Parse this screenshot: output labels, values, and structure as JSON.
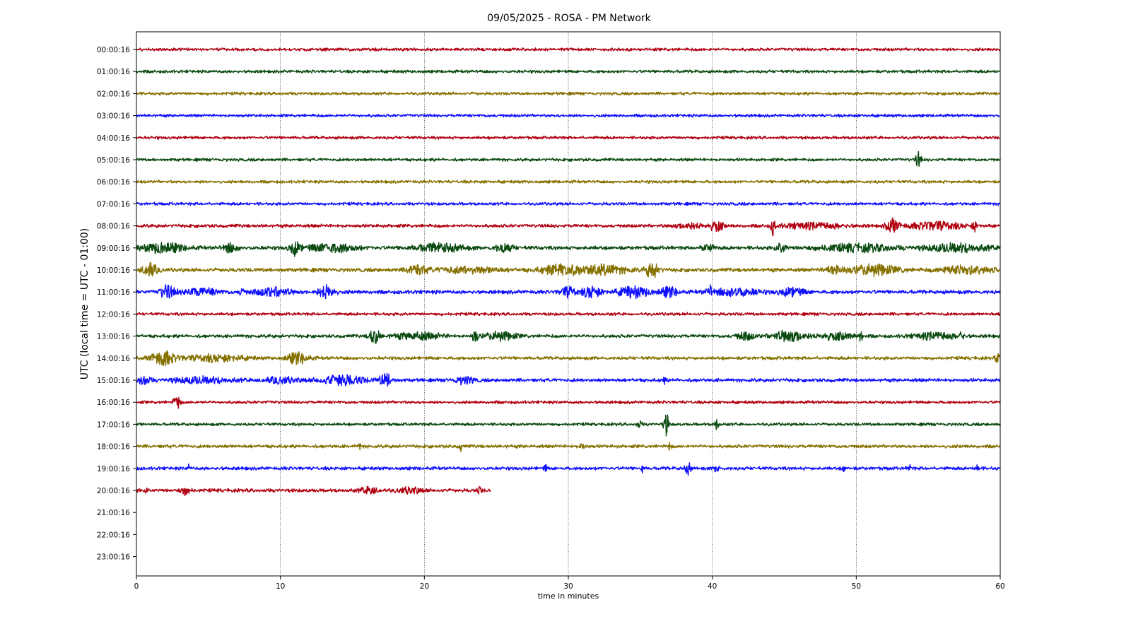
{
  "chart_data": {
    "type": "line",
    "title": "09/05/2025 - ROSA - PM Network",
    "xlabel": "time in minutes",
    "ylabel": "UTC (local time = UTC - 01:00)",
    "xlim": [
      0,
      60
    ],
    "x_ticks": [
      0,
      10,
      20,
      30,
      40,
      50,
      60
    ],
    "x_tick_labels": [
      "0",
      "10",
      "20",
      "30",
      "40",
      "50",
      "60"
    ],
    "vertical_grid": true,
    "trace_colors": [
      "#b00010",
      "#0a4a10",
      "#857000",
      "#1010ff"
    ],
    "rows": [
      {
        "label": "00:00:16",
        "end_minute": 60,
        "noise_level": 0.1,
        "events": []
      },
      {
        "label": "01:00:16",
        "end_minute": 60,
        "noise_level": 0.1,
        "events": []
      },
      {
        "label": "02:00:16",
        "end_minute": 60,
        "noise_level": 0.1,
        "events": []
      },
      {
        "label": "03:00:16",
        "end_minute": 60,
        "noise_level": 0.1,
        "events": []
      },
      {
        "label": "04:00:16",
        "end_minute": 60,
        "noise_level": 0.1,
        "events": []
      },
      {
        "label": "05:00:16",
        "end_minute": 60,
        "noise_level": 0.1,
        "events": [
          {
            "minute": 54.3,
            "amplitude": 0.8,
            "duration": 0.4
          }
        ]
      },
      {
        "label": "06:00:16",
        "end_minute": 60,
        "noise_level": 0.1,
        "events": []
      },
      {
        "label": "07:00:16",
        "end_minute": 60,
        "noise_level": 0.1,
        "events": []
      },
      {
        "label": "08:00:16",
        "end_minute": 60,
        "noise_level": 0.12,
        "events": [
          {
            "minute": 38.5,
            "amplitude": 0.25,
            "duration": 3.0
          },
          {
            "minute": 40.3,
            "amplitude": 0.5,
            "duration": 1.0
          },
          {
            "minute": 44.2,
            "amplitude": 0.9,
            "duration": 0.3
          },
          {
            "minute": 47,
            "amplitude": 0.3,
            "duration": 5.0
          },
          {
            "minute": 52.5,
            "amplitude": 0.7,
            "duration": 1.0
          },
          {
            "minute": 55.5,
            "amplitude": 0.4,
            "duration": 4.5
          },
          {
            "minute": 58.2,
            "amplitude": 0.6,
            "duration": 0.3
          }
        ]
      },
      {
        "label": "09:00:16",
        "end_minute": 60,
        "noise_level": 0.15,
        "events": [
          {
            "minute": 1.8,
            "amplitude": 0.5,
            "duration": 3.5
          },
          {
            "minute": 6.5,
            "amplitude": 0.45,
            "duration": 1.2
          },
          {
            "minute": 11.0,
            "amplitude": 0.7,
            "duration": 0.8
          },
          {
            "minute": 13.5,
            "amplitude": 0.4,
            "duration": 4.0
          },
          {
            "minute": 21.0,
            "amplitude": 0.4,
            "duration": 4.0
          },
          {
            "minute": 25.5,
            "amplitude": 0.4,
            "duration": 1.5
          },
          {
            "minute": 39.7,
            "amplitude": 0.35,
            "duration": 1.0
          },
          {
            "minute": 44.8,
            "amplitude": 0.6,
            "duration": 0.8
          },
          {
            "minute": 50,
            "amplitude": 0.35,
            "duration": 6.0
          },
          {
            "minute": 57,
            "amplitude": 0.4,
            "duration": 5.0
          }
        ]
      },
      {
        "label": "10:00:16",
        "end_minute": 60,
        "noise_level": 0.15,
        "events": [
          {
            "minute": 0.9,
            "amplitude": 0.7,
            "duration": 1.2
          },
          {
            "minute": 19.5,
            "amplitude": 0.5,
            "duration": 1.5
          },
          {
            "minute": 23,
            "amplitude": 0.3,
            "duration": 5.0
          },
          {
            "minute": 29.5,
            "amplitude": 0.5,
            "duration": 3.5
          },
          {
            "minute": 32.5,
            "amplitude": 0.5,
            "duration": 3.5
          },
          {
            "minute": 35.8,
            "amplitude": 0.9,
            "duration": 1.0
          },
          {
            "minute": 48.5,
            "amplitude": 0.45,
            "duration": 1.5
          },
          {
            "minute": 51.3,
            "amplitude": 0.55,
            "duration": 3.5
          },
          {
            "minute": 57.5,
            "amplitude": 0.45,
            "duration": 4.0
          }
        ]
      },
      {
        "label": "11:00:16",
        "end_minute": 60,
        "noise_level": 0.15,
        "events": [
          {
            "minute": 2.1,
            "amplitude": 0.65,
            "duration": 1.2
          },
          {
            "minute": 4.5,
            "amplitude": 0.35,
            "duration": 3.0
          },
          {
            "minute": 7.3,
            "amplitude": 0.6,
            "duration": 0.3
          },
          {
            "minute": 9.5,
            "amplitude": 0.4,
            "duration": 3.0
          },
          {
            "minute": 13.2,
            "amplitude": 0.7,
            "duration": 1.2
          },
          {
            "minute": 30.0,
            "amplitude": 0.5,
            "duration": 1.2
          },
          {
            "minute": 31.6,
            "amplitude": 0.6,
            "duration": 1.5
          },
          {
            "minute": 34.5,
            "amplitude": 0.6,
            "duration": 2.5
          },
          {
            "minute": 37.0,
            "amplitude": 0.5,
            "duration": 1.5
          },
          {
            "minute": 39.8,
            "amplitude": 0.6,
            "duration": 0.4
          },
          {
            "minute": 41.5,
            "amplitude": 0.4,
            "duration": 3.5
          },
          {
            "minute": 45.5,
            "amplitude": 0.4,
            "duration": 2.0
          }
        ]
      },
      {
        "label": "12:00:16",
        "end_minute": 60,
        "noise_level": 0.1,
        "events": []
      },
      {
        "label": "13:00:16",
        "end_minute": 60,
        "noise_level": 0.12,
        "events": [
          {
            "minute": 16.5,
            "amplitude": 0.8,
            "duration": 0.8
          },
          {
            "minute": 19.5,
            "amplitude": 0.35,
            "duration": 4.0
          },
          {
            "minute": 23.5,
            "amplitude": 0.6,
            "duration": 0.5
          },
          {
            "minute": 25.3,
            "amplitude": 0.45,
            "duration": 2.5
          },
          {
            "minute": 42.3,
            "amplitude": 0.4,
            "duration": 1.5
          },
          {
            "minute": 45.3,
            "amplitude": 0.6,
            "duration": 2.5
          },
          {
            "minute": 48.5,
            "amplitude": 0.35,
            "duration": 3.0
          },
          {
            "minute": 50.3,
            "amplitude": 0.6,
            "duration": 0.3
          },
          {
            "minute": 55.5,
            "amplitude": 0.35,
            "duration": 3.5
          },
          {
            "minute": 57.3,
            "amplitude": 0.6,
            "duration": 0.3
          }
        ]
      },
      {
        "label": "14:00:16",
        "end_minute": 60,
        "noise_level": 0.12,
        "events": [
          {
            "minute": 1.8,
            "amplitude": 0.75,
            "duration": 2.0
          },
          {
            "minute": 5.5,
            "amplitude": 0.35,
            "duration": 5.0
          },
          {
            "minute": 11.2,
            "amplitude": 0.6,
            "duration": 1.8
          },
          {
            "minute": 59.8,
            "amplitude": 0.4,
            "duration": 0.4
          }
        ]
      },
      {
        "label": "15:00:16",
        "end_minute": 60,
        "noise_level": 0.13,
        "events": [
          {
            "minute": 0.5,
            "amplitude": 0.45,
            "duration": 1.0
          },
          {
            "minute": 4.5,
            "amplitude": 0.3,
            "duration": 5.0
          },
          {
            "minute": 10,
            "amplitude": 0.3,
            "duration": 3.0
          },
          {
            "minute": 14.3,
            "amplitude": 0.5,
            "duration": 3.5
          },
          {
            "minute": 17.3,
            "amplitude": 0.7,
            "duration": 1.0
          },
          {
            "minute": 22.8,
            "amplitude": 0.4,
            "duration": 1.5
          },
          {
            "minute": 36.6,
            "amplitude": 0.4,
            "duration": 0.3
          }
        ]
      },
      {
        "label": "16:00:16",
        "end_minute": 60,
        "noise_level": 0.1,
        "events": [
          {
            "minute": 2.8,
            "amplitude": 0.9,
            "duration": 0.5
          }
        ]
      },
      {
        "label": "17:00:16",
        "end_minute": 60,
        "noise_level": 0.1,
        "events": [
          {
            "minute": 34.9,
            "amplitude": 0.4,
            "duration": 0.4
          },
          {
            "minute": 36.8,
            "amplitude": 1.2,
            "duration": 0.4
          },
          {
            "minute": 40.3,
            "amplitude": 0.9,
            "duration": 0.3
          }
        ]
      },
      {
        "label": "18:00:16",
        "end_minute": 60,
        "noise_level": 0.12,
        "events": [
          {
            "minute": 15.5,
            "amplitude": 0.4,
            "duration": 0.2
          },
          {
            "minute": 22.5,
            "amplitude": 0.5,
            "duration": 0.2
          },
          {
            "minute": 31.0,
            "amplitude": 0.4,
            "duration": 0.4
          },
          {
            "minute": 37.0,
            "amplitude": 0.4,
            "duration": 0.3
          }
        ]
      },
      {
        "label": "19:00:16",
        "end_minute": 60,
        "noise_level": 0.12,
        "events": [
          {
            "minute": 3.6,
            "amplitude": 0.4,
            "duration": 0.2
          },
          {
            "minute": 28.4,
            "amplitude": 0.45,
            "duration": 0.2
          },
          {
            "minute": 35.1,
            "amplitude": 0.5,
            "duration": 0.2
          },
          {
            "minute": 38.3,
            "amplitude": 0.6,
            "duration": 0.5
          },
          {
            "minute": 40.3,
            "amplitude": 0.4,
            "duration": 0.4
          },
          {
            "minute": 49.1,
            "amplitude": 0.4,
            "duration": 0.2
          },
          {
            "minute": 53.7,
            "amplitude": 0.45,
            "duration": 0.2
          },
          {
            "minute": 58.4,
            "amplitude": 0.6,
            "duration": 0.2
          }
        ]
      },
      {
        "label": "20:00:16",
        "end_minute": 24.6,
        "noise_level": 0.13,
        "events": [
          {
            "minute": 0.7,
            "amplitude": 0.4,
            "duration": 0.2
          },
          {
            "minute": 3.4,
            "amplitude": 0.4,
            "duration": 0.8
          },
          {
            "minute": 16.2,
            "amplitude": 0.35,
            "duration": 1.5
          },
          {
            "minute": 19.0,
            "amplitude": 0.3,
            "duration": 2.0
          },
          {
            "minute": 23.8,
            "amplitude": 0.3,
            "duration": 0.4
          }
        ]
      },
      {
        "label": "21:00:16",
        "end_minute": 0,
        "noise_level": 0,
        "events": []
      },
      {
        "label": "22:00:16",
        "end_minute": 0,
        "noise_level": 0,
        "events": []
      },
      {
        "label": "23:00:16",
        "end_minute": 0,
        "noise_level": 0,
        "events": []
      }
    ]
  }
}
